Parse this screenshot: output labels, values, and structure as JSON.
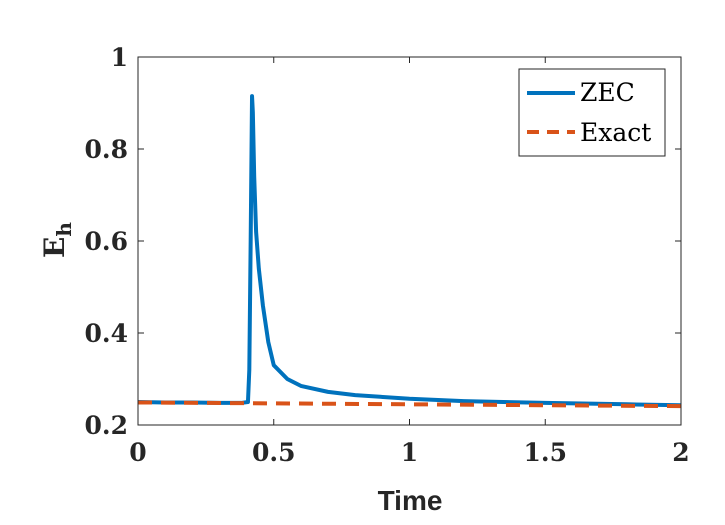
{
  "chart_data": {
    "type": "line",
    "xlabel": "Time",
    "ylabel": "E",
    "ylabel_sub": "h",
    "xlim": [
      0,
      2
    ],
    "ylim": [
      0.2,
      1
    ],
    "xticks": [
      0,
      0.5,
      1,
      1.5,
      2
    ],
    "xtick_labels": [
      "0",
      "0.5",
      "1",
      "1.5",
      "2"
    ],
    "yticks": [
      0.2,
      0.4,
      0.6,
      0.8,
      1
    ],
    "ytick_labels": [
      "0.2",
      "0.4",
      "0.6",
      "0.8",
      "1"
    ],
    "grid": false,
    "legend_position": "top-right",
    "series": [
      {
        "name": "ZEC",
        "color": "#0072BD",
        "style": "solid",
        "x": [
          0,
          0.1,
          0.2,
          0.3,
          0.38,
          0.405,
          0.41,
          0.415,
          0.42,
          0.423,
          0.428,
          0.435,
          0.445,
          0.46,
          0.48,
          0.5,
          0.55,
          0.6,
          0.7,
          0.8,
          1.0,
          1.2,
          1.5,
          1.8,
          2.0
        ],
        "y": [
          0.25,
          0.249,
          0.249,
          0.248,
          0.248,
          0.25,
          0.32,
          0.6,
          0.915,
          0.88,
          0.74,
          0.62,
          0.54,
          0.46,
          0.38,
          0.33,
          0.3,
          0.285,
          0.272,
          0.265,
          0.257,
          0.252,
          0.248,
          0.245,
          0.243
        ]
      },
      {
        "name": "Exact",
        "color": "#D95319",
        "style": "dashed",
        "x": [
          0,
          0.5,
          1.0,
          1.5,
          2.0
        ],
        "y": [
          0.249,
          0.247,
          0.245,
          0.243,
          0.241
        ]
      }
    ]
  }
}
